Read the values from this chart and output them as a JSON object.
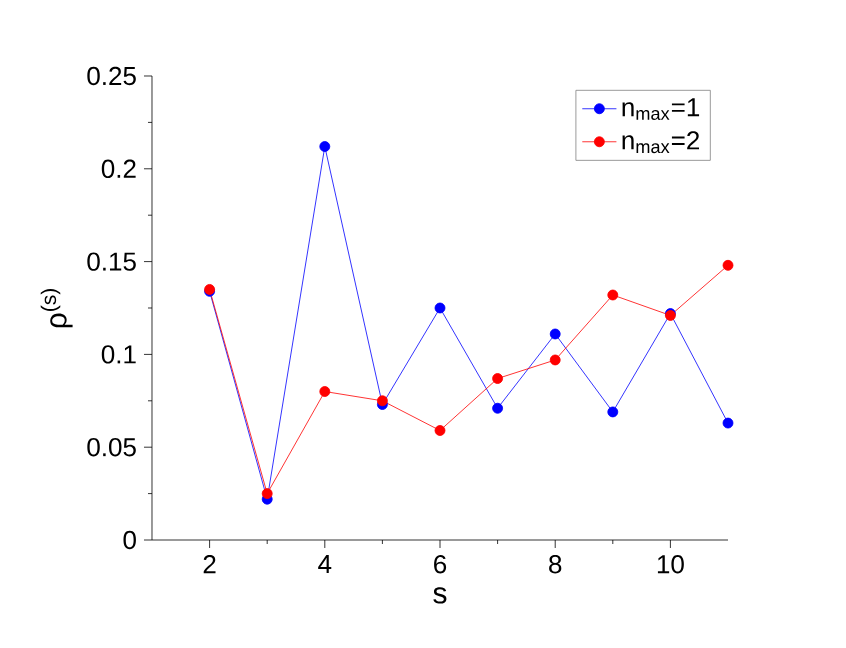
{
  "chart_data": {
    "type": "line",
    "xlabel": "s",
    "ylabel": "ρ$^{(s)}$",
    "x": [
      2,
      3,
      4,
      5,
      6,
      7,
      8,
      9,
      10,
      11
    ],
    "series": [
      {
        "name": "n$_{max}$=1",
        "color": "#0000ff",
        "values": [
          0.134,
          0.022,
          0.212,
          0.073,
          0.125,
          0.071,
          0.111,
          0.069,
          0.122,
          0.063
        ]
      },
      {
        "name": "n$_{max}$=2",
        "color": "#ff0000",
        "values": [
          0.135,
          0.025,
          0.08,
          0.075,
          0.059,
          0.087,
          0.097,
          0.132,
          0.121,
          0.148
        ]
      }
    ],
    "xlim": [
      1,
      11
    ],
    "ylim": [
      0,
      0.25
    ],
    "xticks": [
      2,
      4,
      6,
      8,
      10
    ],
    "yticks": [
      0,
      0.05,
      0.1,
      0.15,
      0.2,
      0.25
    ],
    "grid": false,
    "legend": "top right",
    "marker": "circle",
    "line_style": "solid"
  }
}
